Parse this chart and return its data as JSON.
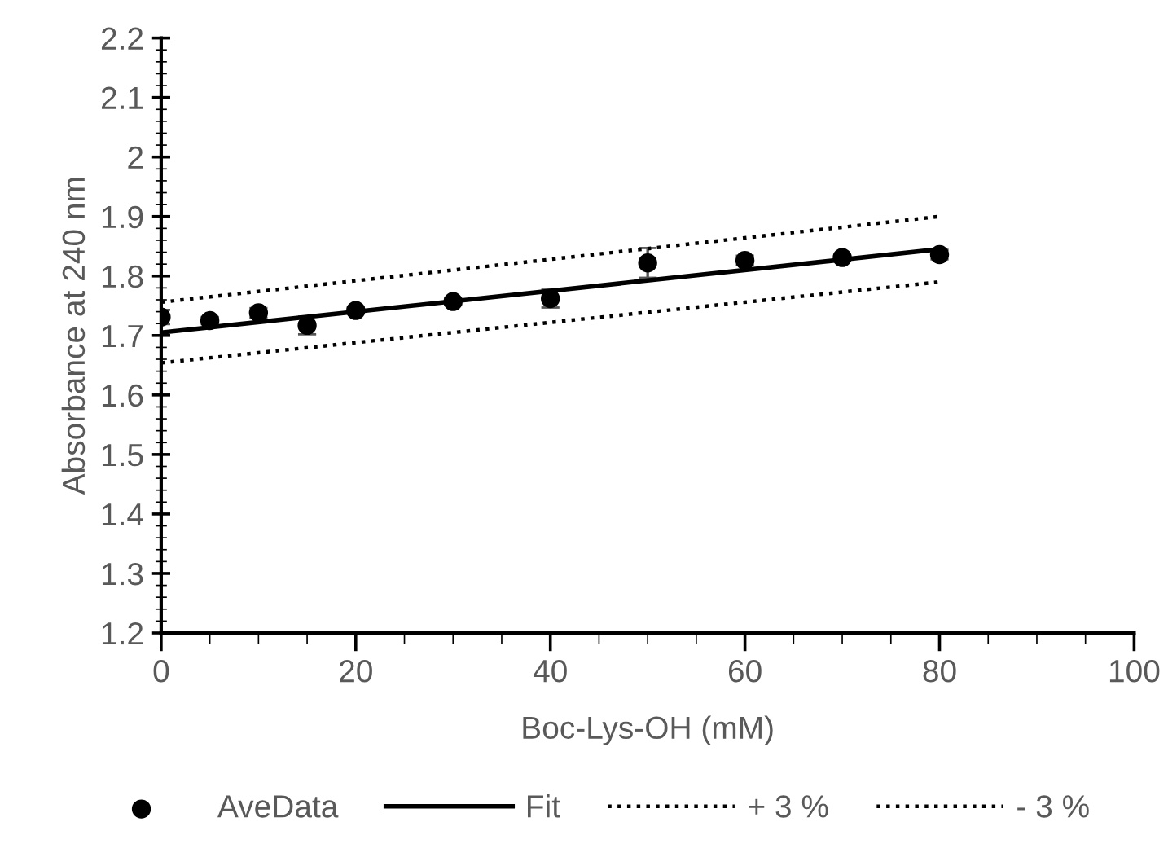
{
  "chart_data": {
    "type": "scatter",
    "xlabel": "Boc-Lys-OH (mM)",
    "ylabel": "Absorbance at 240 nm",
    "xlim": [
      0,
      100
    ],
    "xticks": [
      0,
      20,
      40,
      60,
      80,
      100
    ],
    "ylim": [
      1.2,
      2.2
    ],
    "yticks": [
      1.2,
      1.3,
      1.4,
      1.5,
      1.6,
      1.7,
      1.8,
      1.9,
      2,
      2.1,
      2.2
    ],
    "grid": false,
    "legend": "bottom",
    "series": [
      {
        "name": "AveData",
        "marker": "circle",
        "color": "#000000",
        "x": [
          0,
          5,
          10,
          15,
          20,
          30,
          40,
          50,
          60,
          70,
          80
        ],
        "values": [
          1.731,
          1.725,
          1.738,
          1.717,
          1.742,
          1.757,
          1.762,
          1.822,
          1.826,
          1.831,
          1.836
        ],
        "errors": [
          0.012,
          0.006,
          0.008,
          0.015,
          0.005,
          0.006,
          0.015,
          0.025,
          0.008,
          0.004,
          0.008
        ]
      },
      {
        "name": "Fit",
        "type": "line",
        "line_style": "solid",
        "color": "#000000",
        "x": [
          0,
          80
        ],
        "values": [
          1.705,
          1.845
        ]
      },
      {
        "name": "+ 3 %",
        "type": "line",
        "line_style": "dotted",
        "color": "#000000",
        "x": [
          0,
          80
        ],
        "values": [
          1.756,
          1.9
        ]
      },
      {
        "name": "- 3 %",
        "type": "line",
        "line_style": "dotted",
        "color": "#000000",
        "x": [
          0,
          80
        ],
        "values": [
          1.654,
          1.79
        ]
      }
    ]
  }
}
